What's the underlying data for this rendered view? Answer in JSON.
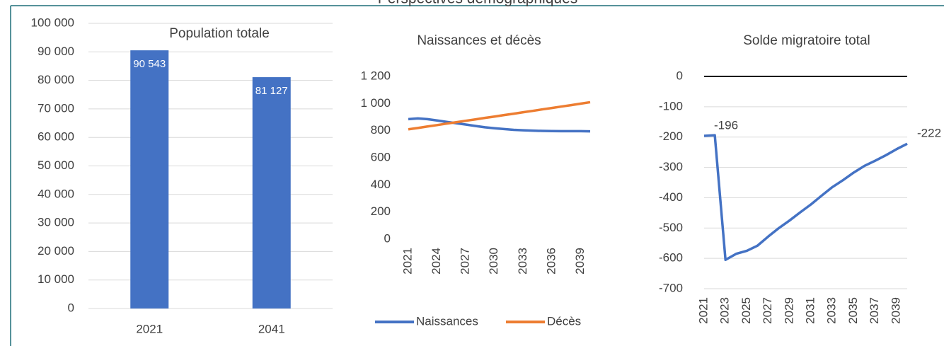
{
  "title": "Perspectives démographiques",
  "chart_data": [
    {
      "type": "bar",
      "title": "Population totale",
      "categories": [
        "2021",
        "2041"
      ],
      "values": [
        90543,
        81127
      ],
      "value_labels": [
        "90 543",
        "81 127"
      ],
      "color": "#4472c4",
      "ylim": [
        0,
        100000
      ],
      "yticks": [
        0,
        {
          "value": 10000,
          "label": "10 000"
        },
        {
          "value": 20000,
          "label": "20 000"
        },
        {
          "value": 30000,
          "label": "30 000"
        },
        {
          "value": 40000,
          "label": "40 000"
        },
        {
          "value": 50000,
          "label": "50 000"
        },
        {
          "value": 60000,
          "label": "60 000"
        },
        {
          "value": 70000,
          "label": "70 000"
        },
        {
          "value": 80000,
          "label": "80 000"
        },
        {
          "value": 90000,
          "label": "90 000"
        },
        {
          "value": 100000,
          "label": "100 000"
        }
      ],
      "grid": true
    },
    {
      "type": "line",
      "title": "Naissances et décès",
      "x": [
        2021,
        2022,
        2023,
        2024,
        2025,
        2026,
        2027,
        2028,
        2029,
        2030,
        2031,
        2032,
        2033,
        2034,
        2035,
        2036,
        2037,
        2038,
        2039,
        2040
      ],
      "xlim": [
        2021,
        2040
      ],
      "xticks": [
        2021,
        2024,
        2027,
        2030,
        2033,
        2036,
        2039
      ],
      "ylim": [
        0,
        1200
      ],
      "yticks": [
        0,
        200,
        400,
        600,
        800,
        {
          "value": 1000,
          "label": "1 000"
        },
        {
          "value": 1200,
          "label": "1 200"
        }
      ],
      "grid": false,
      "legend": "bottom",
      "series": [
        {
          "name": "Naissances",
          "color": "#4472c4",
          "values": [
            885,
            890,
            885,
            875,
            865,
            855,
            845,
            835,
            825,
            818,
            812,
            806,
            803,
            800,
            798,
            797,
            796,
            796,
            796,
            795
          ]
        },
        {
          "name": "Décès",
          "color": "#ed7d31",
          "values": [
            810,
            820,
            831,
            841,
            852,
            862,
            873,
            883,
            894,
            904,
            915,
            925,
            936,
            946,
            957,
            967,
            978,
            988,
            999,
            1010
          ]
        }
      ]
    },
    {
      "type": "line",
      "title": "Solde migratoire total",
      "x": [
        2021,
        2022,
        2023,
        2024,
        2025,
        2026,
        2027,
        2028,
        2029,
        2030,
        2031,
        2032,
        2033,
        2034,
        2035,
        2036,
        2037,
        2038,
        2039,
        2040
      ],
      "xlim": [
        2021,
        2040
      ],
      "xticks": [
        2021,
        2023,
        2025,
        2027,
        2029,
        2031,
        2033,
        2035,
        2037,
        2039
      ],
      "ylim": [
        -700,
        0
      ],
      "yticks": [
        -700,
        -600,
        -500,
        -400,
        -300,
        -200,
        -100,
        0
      ],
      "grid": true,
      "zero_line": true,
      "series": [
        {
          "name": "Solde migratoire total",
          "color": "#4472c4",
          "values": [
            -196,
            -194,
            -605,
            -585,
            -575,
            -558,
            -528,
            -500,
            -475,
            -448,
            -422,
            -393,
            -365,
            -342,
            -317,
            -295,
            -278,
            -260,
            -240,
            -222
          ],
          "value_labels": [
            "-196",
            null,
            null,
            null,
            null,
            null,
            null,
            null,
            null,
            null,
            null,
            null,
            null,
            null,
            null,
            null,
            null,
            null,
            null,
            "-222"
          ]
        }
      ]
    }
  ]
}
